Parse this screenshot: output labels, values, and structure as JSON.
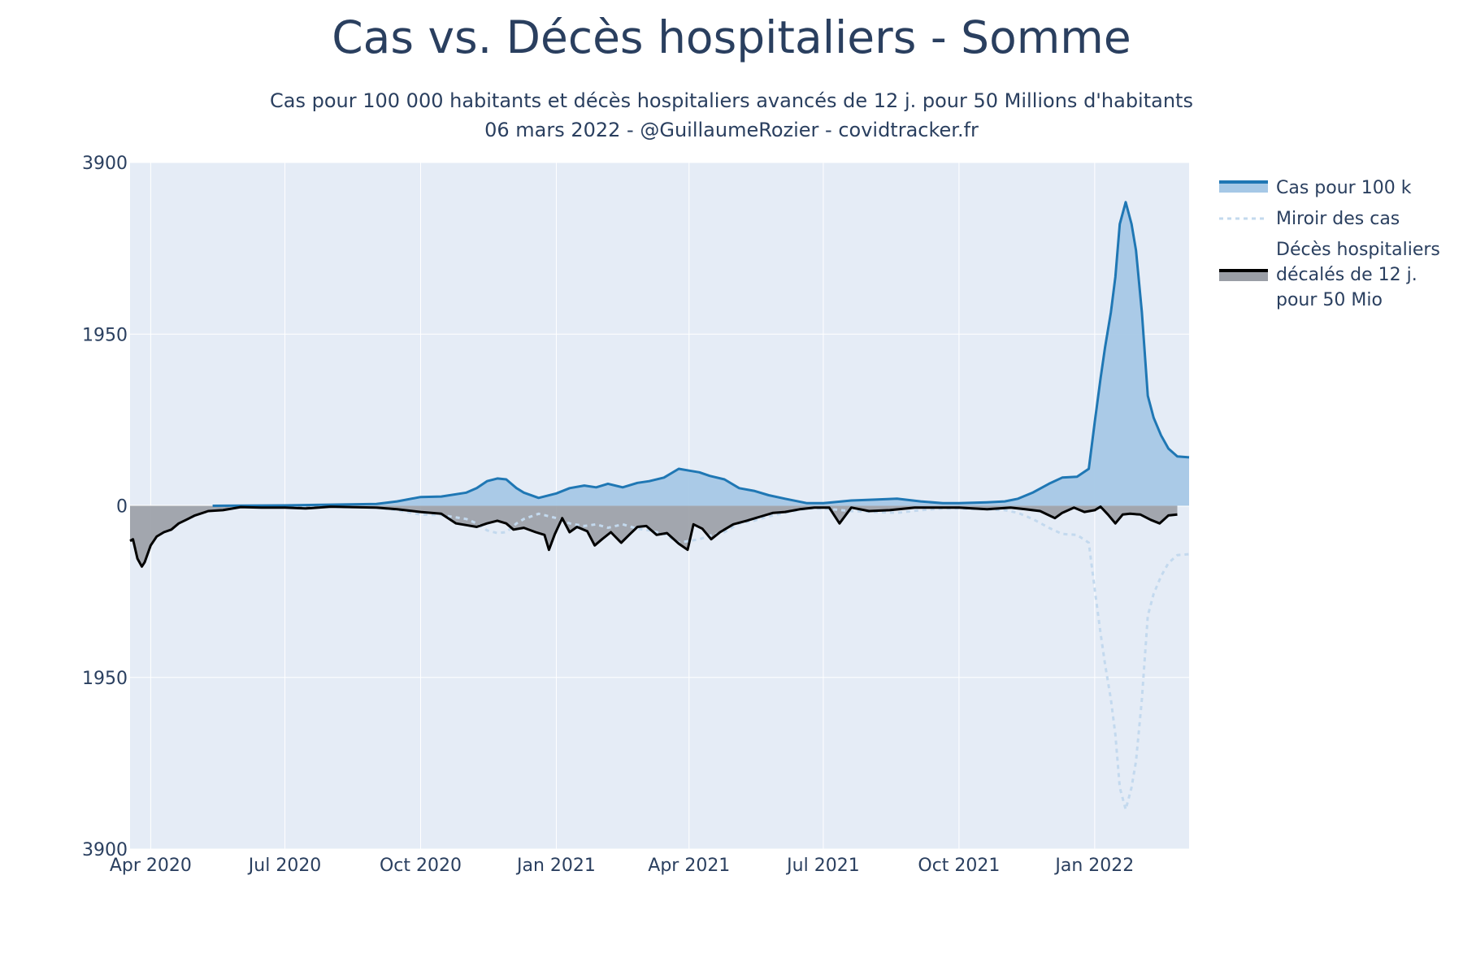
{
  "chart_data": {
    "type": "area",
    "title": "Cas vs. Décès hospitaliers - Somme",
    "subtitle_line1": "Cas pour 100 000 habitants et décès hospitaliers avancés de 12 j. pour 50 Millions d'habitants",
    "subtitle_line2": "06 mars 2022 - @GuillaumeRozier - covidtracker.fr",
    "xlabel": "",
    "ylabel": "",
    "x_range": [
      "2020-03-18",
      "2022-03-06"
    ],
    "y_range": [
      -3900,
      3900
    ],
    "y_ticks": [
      {
        "value": 3900,
        "label": "3900"
      },
      {
        "value": 1950,
        "label": "1950"
      },
      {
        "value": 0,
        "label": "0"
      },
      {
        "value": -1950,
        "label": "1950"
      },
      {
        "value": -3900,
        "label": "3900"
      }
    ],
    "x_ticks": [
      {
        "date": "2020-04-01",
        "label": "Apr 2020"
      },
      {
        "date": "2020-07-01",
        "label": "Jul 2020"
      },
      {
        "date": "2020-10-01",
        "label": "Oct 2020"
      },
      {
        "date": "2021-01-01",
        "label": "Jan 2021"
      },
      {
        "date": "2021-04-01",
        "label": "Apr 2021"
      },
      {
        "date": "2021-07-01",
        "label": "Jul 2021"
      },
      {
        "date": "2021-10-01",
        "label": "Oct 2021"
      },
      {
        "date": "2022-01-01",
        "label": "Jan 2022"
      }
    ],
    "grid": true,
    "legend_position": "right",
    "series": [
      {
        "name": "Cas pour 100 k",
        "color": "#1f77b4",
        "fill": "#a6c8e6",
        "points": [
          [
            "2020-05-13",
            0
          ],
          [
            "2020-07-01",
            5
          ],
          [
            "2020-09-01",
            20
          ],
          [
            "2020-09-15",
            50
          ],
          [
            "2020-10-01",
            100
          ],
          [
            "2020-10-15",
            105
          ],
          [
            "2020-11-01",
            150
          ],
          [
            "2020-11-08",
            200
          ],
          [
            "2020-11-15",
            280
          ],
          [
            "2020-11-22",
            310
          ],
          [
            "2020-11-28",
            300
          ],
          [
            "2020-12-05",
            200
          ],
          [
            "2020-12-10",
            150
          ],
          [
            "2020-12-20",
            90
          ],
          [
            "2021-01-01",
            140
          ],
          [
            "2021-01-10",
            200
          ],
          [
            "2021-01-20",
            230
          ],
          [
            "2021-01-28",
            210
          ],
          [
            "2021-02-05",
            250
          ],
          [
            "2021-02-15",
            210
          ],
          [
            "2021-02-25",
            260
          ],
          [
            "2021-03-05",
            280
          ],
          [
            "2021-03-15",
            320
          ],
          [
            "2021-03-25",
            420
          ],
          [
            "2021-04-01",
            400
          ],
          [
            "2021-04-08",
            380
          ],
          [
            "2021-04-15",
            340
          ],
          [
            "2021-04-25",
            300
          ],
          [
            "2021-05-05",
            200
          ],
          [
            "2021-05-15",
            170
          ],
          [
            "2021-05-25",
            120
          ],
          [
            "2021-06-05",
            80
          ],
          [
            "2021-06-20",
            30
          ],
          [
            "2021-07-01",
            30
          ],
          [
            "2021-07-20",
            60
          ],
          [
            "2021-08-05",
            70
          ],
          [
            "2021-08-20",
            80
          ],
          [
            "2021-09-05",
            50
          ],
          [
            "2021-09-20",
            30
          ],
          [
            "2021-10-01",
            30
          ],
          [
            "2021-10-20",
            40
          ],
          [
            "2021-11-01",
            50
          ],
          [
            "2021-11-10",
            80
          ],
          [
            "2021-11-20",
            150
          ],
          [
            "2021-12-01",
            250
          ],
          [
            "2021-12-10",
            320
          ],
          [
            "2021-12-20",
            330
          ],
          [
            "2021-12-28",
            420
          ],
          [
            "2022-01-01",
            950
          ],
          [
            "2022-01-05",
            1450
          ],
          [
            "2022-01-08",
            1800
          ],
          [
            "2022-01-12",
            2200
          ],
          [
            "2022-01-15",
            2600
          ],
          [
            "2022-01-18",
            3200
          ],
          [
            "2022-01-22",
            3450
          ],
          [
            "2022-01-26",
            3200
          ],
          [
            "2022-01-29",
            2900
          ],
          [
            "2022-02-02",
            2200
          ],
          [
            "2022-02-06",
            1250
          ],
          [
            "2022-02-10",
            1000
          ],
          [
            "2022-02-15",
            800
          ],
          [
            "2022-02-20",
            650
          ],
          [
            "2022-02-26",
            560
          ],
          [
            "2022-03-06",
            550
          ]
        ]
      },
      {
        "name": "Miroir des cas",
        "color": "#c3d9ee",
        "dash": true
      },
      {
        "name": "Décès hospitaliers décalés de 12 j. pour 50 Mio",
        "legend_lines": [
          "Décès hospitaliers",
          "décalés de 12 j.",
          "pour 50 Mio"
        ],
        "color": "#000000",
        "fill": "#9a9ea6",
        "points": [
          [
            "2020-03-18",
            400
          ],
          [
            "2020-03-20",
            380
          ],
          [
            "2020-03-23",
            600
          ],
          [
            "2020-03-26",
            690
          ],
          [
            "2020-03-28",
            640
          ],
          [
            "2020-04-01",
            450
          ],
          [
            "2020-04-05",
            350
          ],
          [
            "2020-04-10",
            300
          ],
          [
            "2020-04-15",
            270
          ],
          [
            "2020-04-20",
            200
          ],
          [
            "2020-04-25",
            160
          ],
          [
            "2020-05-01",
            110
          ],
          [
            "2020-05-10",
            60
          ],
          [
            "2020-05-20",
            50
          ],
          [
            "2020-06-01",
            15
          ],
          [
            "2020-06-15",
            20
          ],
          [
            "2020-07-01",
            20
          ],
          [
            "2020-07-15",
            30
          ],
          [
            "2020-08-01",
            10
          ],
          [
            "2020-09-01",
            20
          ],
          [
            "2020-09-15",
            40
          ],
          [
            "2020-10-01",
            70
          ],
          [
            "2020-10-15",
            90
          ],
          [
            "2020-10-25",
            200
          ],
          [
            "2020-11-01",
            220
          ],
          [
            "2020-11-08",
            240
          ],
          [
            "2020-11-15",
            200
          ],
          [
            "2020-11-22",
            170
          ],
          [
            "2020-11-28",
            200
          ],
          [
            "2020-12-03",
            270
          ],
          [
            "2020-12-10",
            250
          ],
          [
            "2020-12-18",
            300
          ],
          [
            "2020-12-24",
            330
          ],
          [
            "2020-12-27",
            500
          ],
          [
            "2020-12-31",
            320
          ],
          [
            "2021-01-05",
            140
          ],
          [
            "2021-01-10",
            300
          ],
          [
            "2021-01-15",
            240
          ],
          [
            "2021-01-22",
            290
          ],
          [
            "2021-01-27",
            450
          ],
          [
            "2021-02-01",
            380
          ],
          [
            "2021-02-07",
            300
          ],
          [
            "2021-02-14",
            420
          ],
          [
            "2021-02-20",
            320
          ],
          [
            "2021-02-25",
            240
          ],
          [
            "2021-03-03",
            230
          ],
          [
            "2021-03-10",
            330
          ],
          [
            "2021-03-17",
            310
          ],
          [
            "2021-03-25",
            430
          ],
          [
            "2021-03-31",
            500
          ],
          [
            "2021-04-04",
            210
          ],
          [
            "2021-04-10",
            260
          ],
          [
            "2021-04-16",
            380
          ],
          [
            "2021-04-22",
            300
          ],
          [
            "2021-05-01",
            210
          ],
          [
            "2021-05-10",
            170
          ],
          [
            "2021-05-20",
            120
          ],
          [
            "2021-05-28",
            80
          ],
          [
            "2021-06-05",
            70
          ],
          [
            "2021-06-15",
            40
          ],
          [
            "2021-06-25",
            20
          ],
          [
            "2021-07-05",
            20
          ],
          [
            "2021-07-12",
            200
          ],
          [
            "2021-07-20",
            20
          ],
          [
            "2021-08-01",
            60
          ],
          [
            "2021-08-15",
            50
          ],
          [
            "2021-09-01",
            20
          ],
          [
            "2021-10-01",
            20
          ],
          [
            "2021-10-20",
            40
          ],
          [
            "2021-11-05",
            20
          ],
          [
            "2021-11-15",
            40
          ],
          [
            "2021-11-25",
            60
          ],
          [
            "2021-12-05",
            140
          ],
          [
            "2021-12-10",
            80
          ],
          [
            "2021-12-18",
            20
          ],
          [
            "2021-12-25",
            70
          ],
          [
            "2022-01-01",
            50
          ],
          [
            "2022-01-05",
            10
          ],
          [
            "2022-01-10",
            100
          ],
          [
            "2022-01-15",
            200
          ],
          [
            "2022-01-20",
            100
          ],
          [
            "2022-01-25",
            90
          ],
          [
            "2022-02-01",
            100
          ],
          [
            "2022-02-08",
            160
          ],
          [
            "2022-02-14",
            200
          ],
          [
            "2022-02-20",
            110
          ],
          [
            "2022-02-26",
            100
          ]
        ]
      }
    ]
  }
}
